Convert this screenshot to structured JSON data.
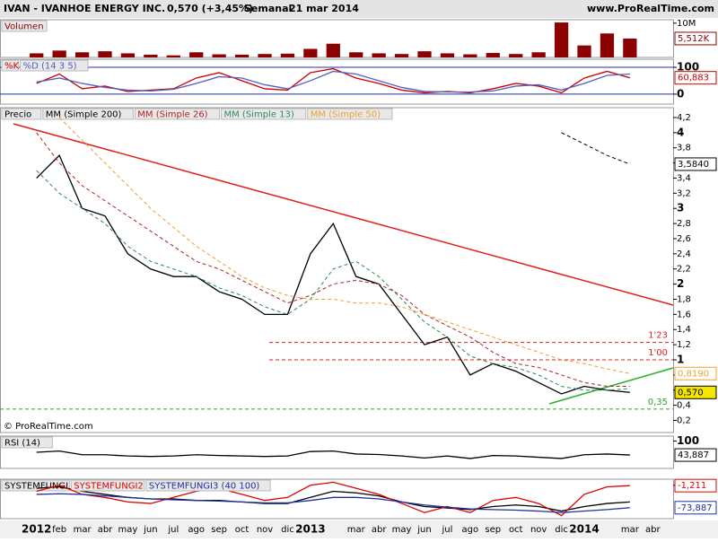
{
  "header": {
    "symbol": "IVAN - IVANHOE ENERGY INC.",
    "quote": "0,570 (+3,45%)",
    "period": "Semanal",
    "date": "21 mar 2014",
    "site": "www.ProRealTime.com"
  },
  "copyright": "© ProRealTime.com",
  "chart_data": [
    {
      "type": "bar",
      "categories": [
        "2012",
        "feb",
        "mar",
        "abr",
        "may",
        "jun",
        "jul",
        "ago",
        "sep",
        "oct",
        "nov",
        "dic",
        "2013",
        null,
        "mar",
        "abr",
        "may",
        "jun",
        "jul",
        "ago",
        "sep",
        "oct",
        "nov",
        "dic",
        "2014",
        null,
        "mar",
        "abr"
      ],
      "ylim": [
        0,
        11
      ],
      "yticks": [
        {
          "value": 10,
          "label": "10M"
        }
      ],
      "series": [
        {
          "name": "Volumen",
          "color": "#8b0000",
          "values": [
            1.2,
            2.0,
            1.5,
            1.8,
            1.2,
            0.8,
            0.6,
            1.5,
            0.9,
            0.8,
            1.0,
            1.1,
            2.5,
            4.0,
            1.5,
            1.2,
            1.0,
            1.8,
            1.2,
            0.9,
            1.3,
            1.0,
            1.5,
            10.2,
            3.5,
            7.0,
            5.512,
            null
          ],
          "value_labels": [
            null,
            null,
            null,
            null,
            null,
            null,
            null,
            null,
            null,
            null,
            null,
            null,
            null,
            null,
            null,
            null,
            null,
            null,
            null,
            null,
            null,
            null,
            null,
            null,
            null,
            null,
            "5,512K",
            null
          ]
        }
      ]
    },
    {
      "type": "line",
      "ylim": [
        -37,
        130
      ],
      "yticks": [
        0,
        100
      ],
      "series": [
        {
          "name": "%K",
          "color": "#cc0000",
          "values": [
            40,
            75,
            20,
            30,
            10,
            15,
            20,
            60,
            80,
            50,
            20,
            15,
            80,
            95,
            60,
            40,
            15,
            5,
            10,
            5,
            20,
            40,
            30,
            5,
            60,
            85,
            60.883,
            null
          ],
          "value_labels": [
            null,
            null,
            null,
            null,
            null,
            null,
            null,
            null,
            null,
            null,
            null,
            null,
            null,
            null,
            null,
            null,
            null,
            null,
            null,
            null,
            null,
            null,
            null,
            null,
            null,
            null,
            "60,883",
            null
          ]
        },
        {
          "name": "%D (14 3 5)",
          "color": "#5060c0",
          "values": [
            45,
            60,
            40,
            25,
            15,
            12,
            18,
            40,
            65,
            60,
            35,
            20,
            50,
            85,
            75,
            50,
            25,
            10,
            8,
            8,
            12,
            30,
            35,
            15,
            40,
            70,
            75,
            null
          ]
        }
      ]
    },
    {
      "type": "line",
      "ylim": [
        0.04,
        4.33
      ],
      "yticks": [
        {
          "value": 4.2,
          "label": "4,2"
        },
        4,
        {
          "value": 3.8,
          "label": "3,8"
        },
        {
          "value": 3.6,
          "label": "3,6"
        },
        {
          "value": 3.4,
          "label": "3,4"
        },
        {
          "value": 3.2,
          "label": "3,2"
        },
        3,
        {
          "value": 2.8,
          "label": "2,8"
        },
        {
          "value": 2.6,
          "label": "2,6"
        },
        {
          "value": 2.4,
          "label": "2,4"
        },
        {
          "value": 2.2,
          "label": "2,2"
        },
        2,
        {
          "value": 1.8,
          "label": "1,8"
        },
        {
          "value": 1.6,
          "label": "1,6"
        },
        {
          "value": 1.4,
          "label": "1,4"
        },
        {
          "value": 1.2,
          "label": "1,2"
        },
        1,
        {
          "value": 0.8,
          "label": "0,8"
        },
        {
          "value": 0.6,
          "label": "0,6"
        },
        {
          "value": 0.4,
          "label": "0,4"
        },
        {
          "value": 0.2,
          "label": "0,2"
        }
      ],
      "annotations": [
        {
          "value": 1.23,
          "label": "1'23"
        },
        {
          "value": 1,
          "label": "1'00"
        },
        {
          "value": 0.35,
          "label": "0,35"
        }
      ],
      "series": [
        {
          "name": "Precio",
          "color": "#000000",
          "values": [
            3.4,
            3.7,
            3.0,
            2.9,
            2.4,
            2.2,
            2.1,
            2.1,
            1.9,
            1.8,
            1.6,
            1.6,
            2.4,
            2.8,
            2.1,
            2.0,
            1.6,
            1.2,
            1.3,
            0.8,
            0.95,
            0.85,
            0.7,
            0.55,
            0.65,
            0.6,
            0.57,
            null
          ],
          "value_labels": [
            null,
            null,
            null,
            null,
            null,
            null,
            null,
            null,
            null,
            null,
            null,
            null,
            null,
            null,
            null,
            null,
            null,
            null,
            null,
            null,
            null,
            null,
            null,
            null,
            null,
            null,
            "0,570",
            null
          ]
        },
        {
          "name": "MM (Simple 200)",
          "color": "#000000",
          "dash": true,
          "values": [
            null,
            null,
            null,
            null,
            null,
            null,
            null,
            null,
            null,
            null,
            null,
            null,
            null,
            null,
            null,
            null,
            null,
            null,
            null,
            null,
            null,
            null,
            null,
            4.0,
            3.85,
            3.7,
            3.584,
            null
          ],
          "value_labels": [
            null,
            null,
            null,
            null,
            null,
            null,
            null,
            null,
            null,
            null,
            null,
            null,
            null,
            null,
            null,
            null,
            null,
            null,
            null,
            null,
            null,
            null,
            null,
            null,
            null,
            null,
            "3,5840",
            null
          ]
        },
        {
          "name": "MM (Simple 26)",
          "color": "#b22222",
          "dash": true,
          "values": [
            4.0,
            3.6,
            3.3,
            3.1,
            2.9,
            2.7,
            2.5,
            2.3,
            2.2,
            2.05,
            1.9,
            1.75,
            1.85,
            2.0,
            2.05,
            2.0,
            1.85,
            1.6,
            1.45,
            1.3,
            1.1,
            0.95,
            0.9,
            0.8,
            0.7,
            0.65,
            0.65,
            null
          ]
        },
        {
          "name": "MM (Simple 13)",
          "color": "#2e8b57",
          "dash": true,
          "values": [
            3.5,
            3.2,
            3.0,
            2.8,
            2.5,
            2.3,
            2.2,
            2.1,
            1.95,
            1.85,
            1.7,
            1.6,
            1.8,
            2.2,
            2.3,
            2.1,
            1.8,
            1.5,
            1.3,
            1.05,
            0.95,
            0.9,
            0.8,
            0.65,
            0.6,
            0.6,
            0.62,
            null
          ]
        },
        {
          "name": "MM (Simple 50)",
          "color": "#f0a030",
          "dash": true,
          "values": [
            null,
            4.2,
            3.9,
            3.6,
            3.3,
            3.0,
            2.75,
            2.5,
            2.3,
            2.1,
            1.95,
            1.85,
            1.8,
            1.8,
            1.75,
            1.75,
            1.7,
            1.6,
            1.5,
            1.4,
            1.3,
            1.2,
            1.1,
            1.0,
            0.95,
            0.88,
            0.819,
            null
          ],
          "value_labels": [
            null,
            null,
            null,
            null,
            null,
            null,
            null,
            null,
            null,
            null,
            null,
            null,
            null,
            null,
            null,
            null,
            null,
            null,
            null,
            null,
            null,
            null,
            null,
            null,
            null,
            null,
            "0,8190",
            null
          ]
        }
      ]
    },
    {
      "type": "line",
      "ylim": [
        -10,
        120
      ],
      "yticks": [
        100
      ],
      "series": [
        {
          "name": "RSI (14)",
          "color": "#000000",
          "values": [
            55,
            60,
            45,
            45,
            40,
            38,
            40,
            45,
            42,
            40,
            38,
            40,
            58,
            60,
            48,
            46,
            40,
            32,
            40,
            30,
            42,
            40,
            35,
            30,
            45,
            48,
            43.887,
            null
          ],
          "value_labels": [
            null,
            null,
            null,
            null,
            null,
            null,
            null,
            null,
            null,
            null,
            null,
            null,
            null,
            null,
            null,
            null,
            null,
            null,
            null,
            null,
            null,
            null,
            null,
            null,
            null,
            null,
            "43,887",
            null
          ]
        }
      ]
    },
    {
      "type": "line",
      "ylim": [
        -110,
        20
      ],
      "yticks": [
        0
      ],
      "series": [
        {
          "name": "SYSTEMFUNGI",
          "color": "#000000",
          "values": [
            -10,
            -5,
            -20,
            -30,
            -40,
            -45,
            -45,
            -50,
            -50,
            -55,
            -60,
            -60,
            -40,
            -20,
            -25,
            -35,
            -55,
            -70,
            -75,
            -80,
            -70,
            -65,
            -70,
            -85,
            -70,
            -60,
            -55,
            null
          ]
        },
        {
          "name": "SYSTEMFUNGI2",
          "color": "#dd0000",
          "values": [
            -20,
            0,
            -30,
            -40,
            -55,
            -60,
            -40,
            -20,
            -10,
            -30,
            -50,
            -40,
            0,
            10,
            -10,
            -30,
            -60,
            -90,
            -70,
            -90,
            -50,
            -40,
            -60,
            -100,
            -30,
            -5,
            -1.211,
            null
          ],
          "value_labels": [
            null,
            null,
            null,
            null,
            null,
            null,
            null,
            null,
            null,
            null,
            null,
            null,
            null,
            null,
            null,
            null,
            null,
            null,
            null,
            null,
            null,
            null,
            null,
            null,
            null,
            null,
            "-1,211",
            null
          ]
        },
        {
          "name": "SYSTEMFUNGI3 (40 100)",
          "color": "#2030a0",
          "values": [
            -30,
            -28,
            -30,
            -35,
            -40,
            -45,
            -48,
            -50,
            -52,
            -55,
            -58,
            -58,
            -50,
            -40,
            -40,
            -45,
            -55,
            -65,
            -72,
            -78,
            -80,
            -82,
            -85,
            -90,
            -85,
            -80,
            -73.887,
            null
          ],
          "value_labels": [
            null,
            null,
            null,
            null,
            null,
            null,
            null,
            null,
            null,
            null,
            null,
            null,
            null,
            null,
            null,
            null,
            null,
            null,
            null,
            null,
            null,
            null,
            null,
            null,
            null,
            null,
            "-73,887",
            null
          ]
        }
      ]
    }
  ]
}
